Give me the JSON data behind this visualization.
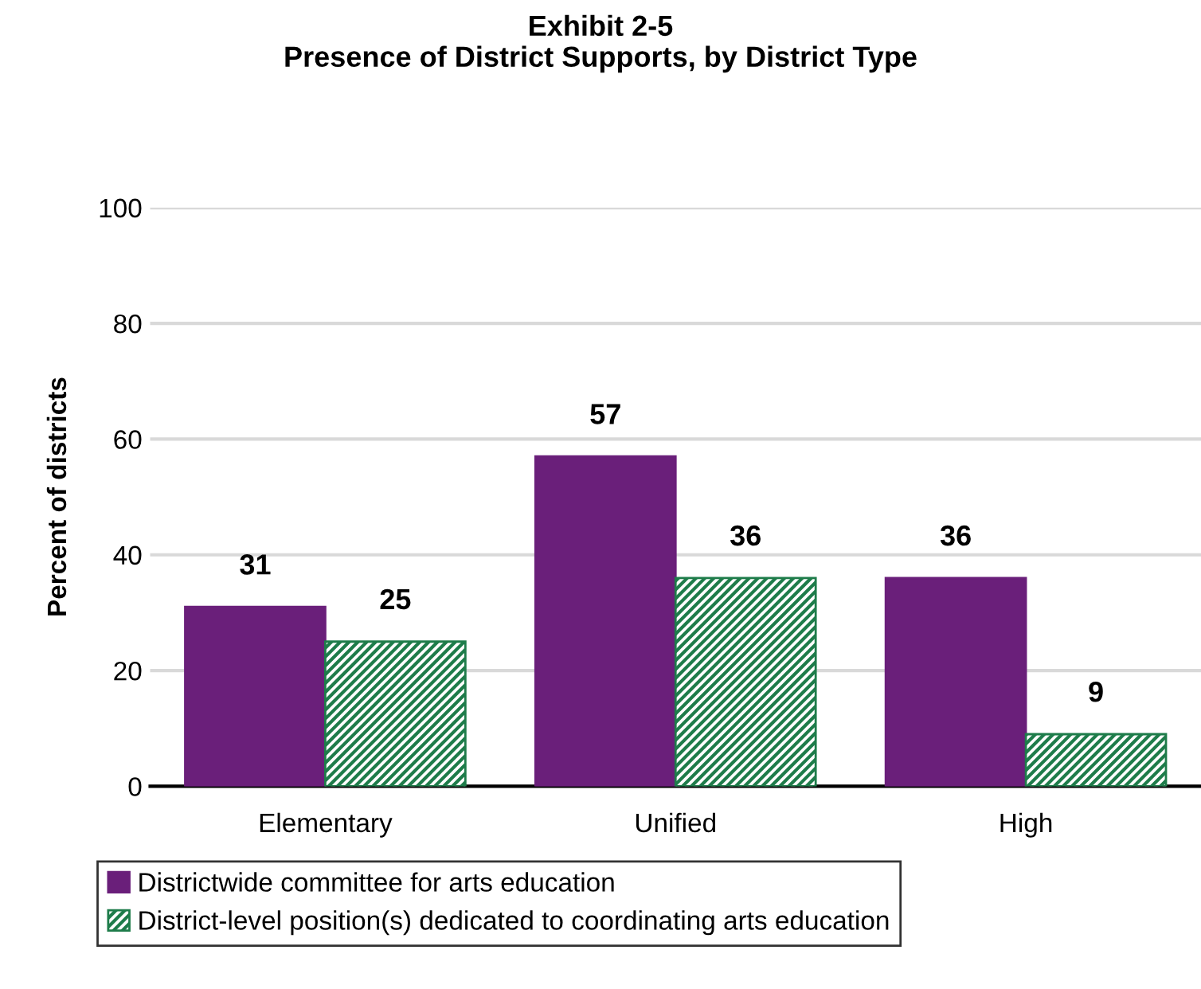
{
  "chart_data": {
    "type": "bar",
    "title": "Exhibit 2-5\nPresence of District Supports, by District Type",
    "ylabel": "Percent of districts",
    "categories": [
      "Elementary",
      "Unified",
      "High"
    ],
    "series": [
      {
        "name": "Districtwide committee for arts education",
        "color": "#6a1f7a",
        "values": [
          31,
          57,
          36
        ]
      },
      {
        "name": "District-level position(s) dedicated to coordinating arts education",
        "color": "#1e7c4a",
        "values": [
          25,
          36,
          9
        ]
      }
    ],
    "ylim": [
      0,
      100
    ],
    "yticks": [
      0,
      20,
      40,
      60,
      80,
      100
    ],
    "grid": "y",
    "legend": "bottom",
    "data_labels": true
  }
}
